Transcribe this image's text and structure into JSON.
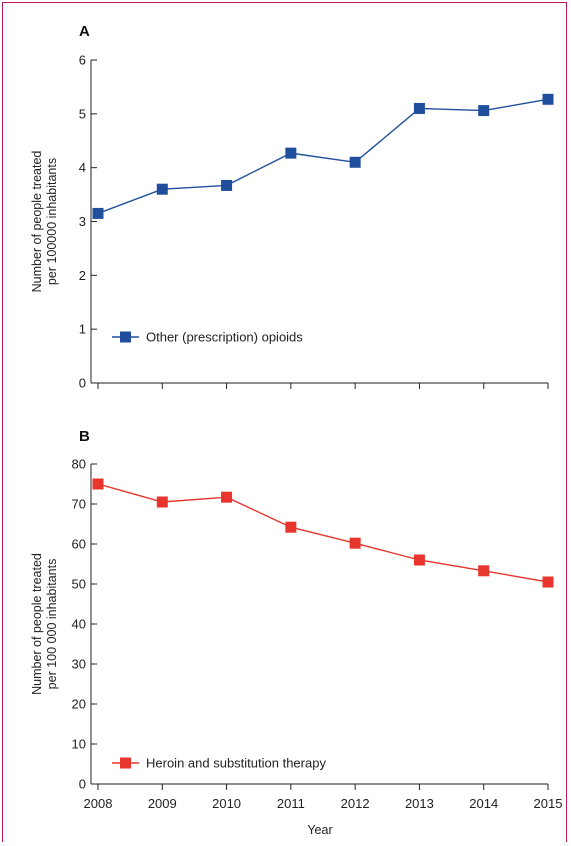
{
  "chart_data": [
    {
      "type": "line",
      "panel_label": "A",
      "ylabel_lines": [
        "Number of people treated",
        "per 100000 inhabitants"
      ],
      "xlabel": "",
      "x": [
        "2008",
        "2009",
        "2010",
        "2011",
        "2012",
        "2013",
        "2014",
        "2015"
      ],
      "ylim": [
        0,
        6
      ],
      "yticks": [
        0,
        1,
        2,
        3,
        4,
        5,
        6
      ],
      "grid": false,
      "legend_position": "bottom-left",
      "series": [
        {
          "name": "Other (prescription) opioids",
          "color": "#1f4e9c",
          "values": [
            3.15,
            3.6,
            3.67,
            4.27,
            4.1,
            5.1,
            5.06,
            5.27
          ]
        }
      ]
    },
    {
      "type": "line",
      "panel_label": "B",
      "ylabel_lines": [
        "Number of people treated",
        "per 100 000 inhabitants"
      ],
      "xlabel": "Year",
      "x": [
        "2008",
        "2009",
        "2010",
        "2011",
        "2012",
        "2013",
        "2014",
        "2015"
      ],
      "ylim": [
        0,
        80
      ],
      "yticks": [
        0,
        10,
        20,
        30,
        40,
        50,
        60,
        70,
        80
      ],
      "grid": false,
      "legend_position": "bottom-left",
      "series": [
        {
          "name": "Heroin and substitution therapy",
          "color": "#e8352e",
          "values": [
            75.0,
            70.5,
            71.7,
            64.2,
            60.2,
            56.0,
            53.3,
            50.5
          ]
        }
      ]
    }
  ]
}
